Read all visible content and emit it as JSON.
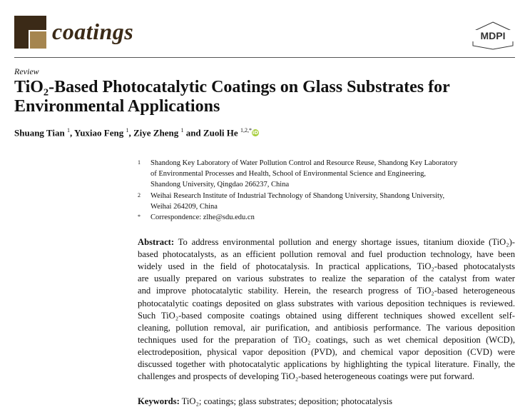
{
  "header": {
    "journal": "coatings",
    "publisher_logo": "MDPI",
    "brand_dark": "#3b2a17",
    "brand_light": "#a5854f"
  },
  "article_type": "Review",
  "title_lines": [
    "TiO₂-Based Photocatalytic Coatings on Glass Substrates for",
    "Environmental Applications"
  ],
  "authors": [
    {
      "name": "Shuang Tian",
      "aff": "1",
      "sep": ", "
    },
    {
      "name": "Yuxiao Feng",
      "aff": "1",
      "sep": ", "
    },
    {
      "name": "Ziye Zheng",
      "aff": "1",
      "sep": " and "
    },
    {
      "name": "Zuoli He",
      "aff": "1,2,*",
      "sep": ""
    }
  ],
  "orcid_label": "iD",
  "affiliations": [
    {
      "mark": "1",
      "lines": [
        "Shandong Key Laboratory of Water Pollution Control and Resource Reuse, Shandong Key Laboratory",
        "of Environmental Processes and Health, School of Environmental Science and Engineering,",
        "Shandong University, Qingdao 266237, China"
      ]
    },
    {
      "mark": "2",
      "lines": [
        "Weihai Research Institute of Industrial Technology of Shandong University, Shandong University,",
        "Weihai 264209, China"
      ]
    },
    {
      "mark": "*",
      "lines": [
        "Correspondence: zlhe@sdu.edu.cn"
      ]
    }
  ],
  "abstract": {
    "label": "Abstract:",
    "lines": [
      " To address environmental pollution and energy shortage issues, titanium dioxide (TiO₂)-",
      "based photocatalysts, as an efficient pollution removal and fuel production technology, have been",
      "widely used in the field of photocatalysis.  In practical applications, TiO₂-based photocatalysts",
      "are usually prepared on various substrates to realize the separation of the catalyst from water",
      "and improve photocatalytic stability.  Herein, the research progress of TiO₂-based heterogeneous",
      "photocatalytic coatings deposited on glass substrates with various deposition techniques is reviewed.",
      "Such TiO₂-based composite coatings obtained using different techniques showed excellent self-",
      "cleaning, pollution removal, air purification, and antibiosis performance.  The various deposition",
      "techniques used for the preparation of TiO₂ coatings, such as wet chemical deposition (WCD),",
      "electrodeposition, physical vapor deposition (PVD), and chemical vapor deposition (CVD) were",
      "discussed together with photocatalytic applications by highlighting the typical literature. Finally, the",
      "challenges and prospects of developing TiO₂-based heterogeneous coatings were put forward."
    ]
  },
  "keywords": {
    "label": "Keywords:",
    "text": " TiO₂; coatings; glass substrates; deposition; photocatalysis"
  }
}
